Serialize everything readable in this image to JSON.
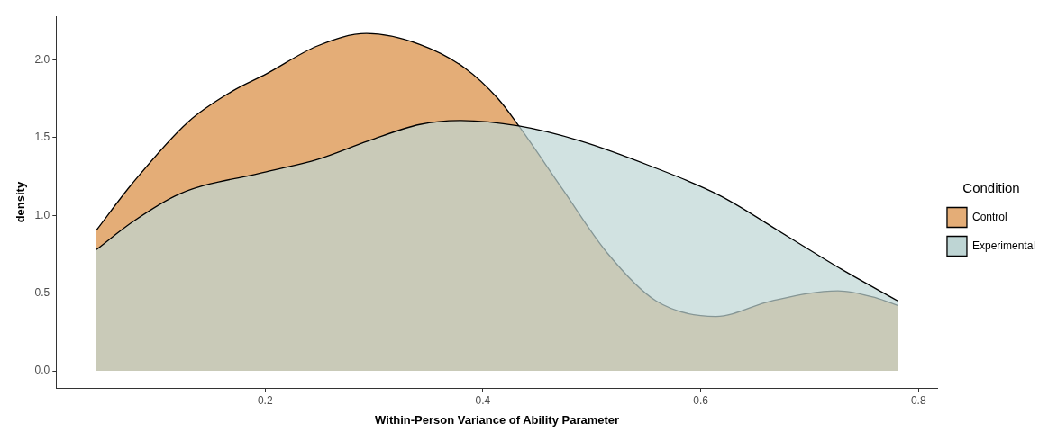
{
  "chart_data": {
    "type": "area",
    "xlabel": "Within-Person Variance of Ability Parameter",
    "ylabel": "density",
    "legend_title": "Condition",
    "legend": "right",
    "grid": false,
    "xlim": [
      0.008,
      0.818
    ],
    "xticks": [
      0.2,
      0.4,
      0.6,
      0.8
    ],
    "ylim": [
      -0.11,
      2.28
    ],
    "yticks": [
      {
        "value": 0,
        "label": "0.0"
      },
      0.5,
      {
        "value": 1,
        "label": "1.0"
      },
      1.5,
      {
        "value": 2,
        "label": "2.0"
      }
    ],
    "series": [
      {
        "name": "Control",
        "color": "#e4ad77",
        "x": [
          0.045,
          0.0785,
          0.129,
          0.17,
          0.201,
          0.248,
          0.293,
          0.342,
          0.383,
          0.414,
          0.433,
          0.473,
          0.514,
          0.559,
          0.614,
          0.665,
          0.726,
          0.761,
          0.781
        ],
        "values": [
          0.905,
          1.21,
          1.6,
          1.8,
          1.91,
          2.09,
          2.17,
          2.1,
          1.95,
          1.75,
          1.575,
          1.17,
          0.76,
          0.45,
          0.35,
          0.45,
          0.515,
          0.47,
          0.42
        ]
      },
      {
        "name": "Experimental",
        "color": "#bed5d4",
        "x": [
          0.045,
          0.0785,
          0.122,
          0.201,
          0.248,
          0.295,
          0.342,
          0.38,
          0.433,
          0.489,
          0.553,
          0.617,
          0.681,
          0.729,
          0.781
        ],
        "values": [
          0.78,
          0.96,
          1.14,
          1.28,
          1.36,
          1.48,
          1.585,
          1.61,
          1.575,
          1.48,
          1.32,
          1.13,
          0.86,
          0.655,
          0.45
        ]
      }
    ]
  }
}
